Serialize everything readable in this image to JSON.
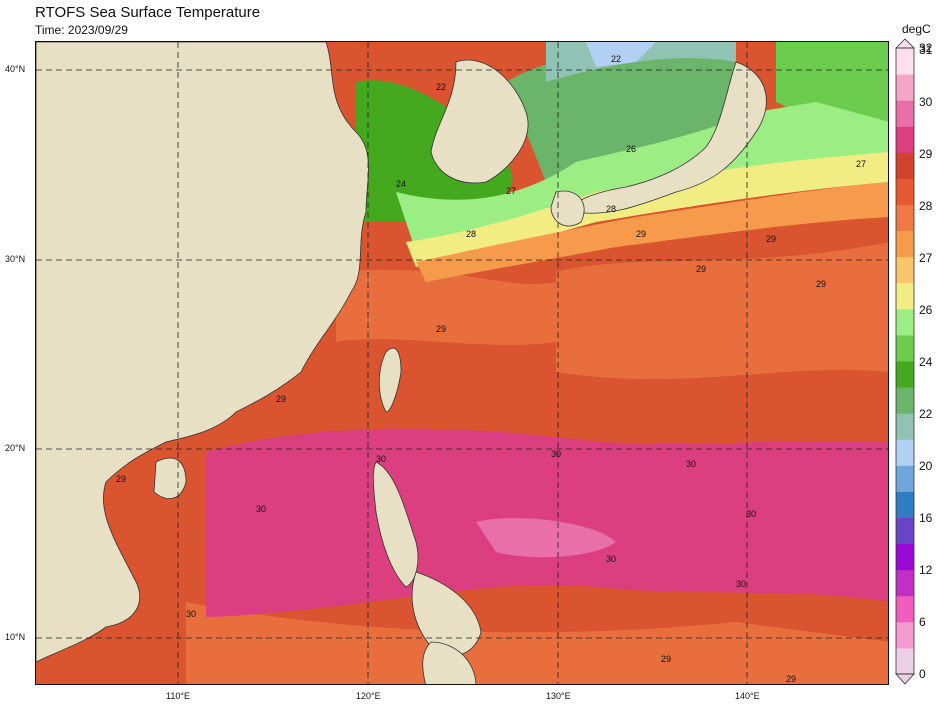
{
  "header": {
    "title": "RTOFS Sea Surface Temperature",
    "time": "Time: 2023/09/29"
  },
  "axes": {
    "lon_labels": [
      "110°E",
      "120°E",
      "130°E",
      "140°E"
    ],
    "lat_labels": [
      "40°N",
      "30°N",
      "20°N",
      "10°N"
    ]
  },
  "map": {
    "extent_lon": [
      102.5,
      147.5
    ],
    "extent_lat": [
      7.5,
      41.5
    ],
    "colors": {
      "land": "#e7e0c4",
      "water_default": "#d9542f"
    },
    "isotherm_labels": [
      "22",
      "24",
      "26",
      "27",
      "28",
      "29",
      "30"
    ]
  },
  "colorbar": {
    "unit": "degC",
    "tick_labels": [
      "0",
      "6",
      "12",
      "16",
      "20",
      "22",
      "24",
      "26",
      "27",
      "28",
      "29",
      "30",
      "31",
      "32"
    ],
    "colors": [
      "#ead0e6",
      "#f49bd0",
      "#f05dbe",
      "#c22fc4",
      "#9a08d6",
      "#6a44c8",
      "#2f7cc1",
      "#6fa6dc",
      "#b2d0f3",
      "#90c3b3",
      "#6ab56a",
      "#44a91f",
      "#6ccc4d",
      "#9ded85",
      "#f2ed83",
      "#f8c56b",
      "#f59b4b",
      "#ee7944",
      "#e55a33",
      "#d1432c",
      "#dc3f7f",
      "#e86fa8",
      "#f3a6c8",
      "#fde0ec"
    ]
  }
}
